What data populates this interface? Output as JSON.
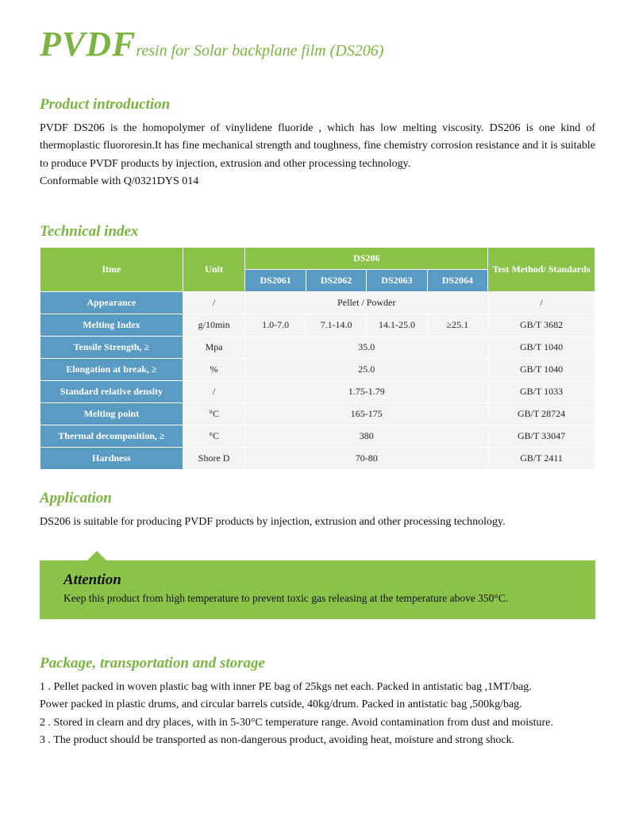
{
  "title": {
    "big": "PVDF",
    "sub": "resin for Solar backplane film (DS206)"
  },
  "intro": {
    "heading": "Product introduction",
    "text": "PVDF  DS206 is the homopolymer of vinylidene fluoride , which has low melting viscosity. DS206 is one kind of thermoplastic fluororesin.It has fine mechanical strength and toughness, fine chemistry corrosion resistance and it is suitable to produce PVDF products by injection, extrusion and other processing technology.\nConformable with Q/0321DYS 014"
  },
  "tech": {
    "heading": "Technical index",
    "header": {
      "item": "Itme",
      "unit": "Unit",
      "group": "DS206",
      "sub": [
        "DS2061",
        "DS2062",
        "DS2063",
        "DS2064"
      ],
      "standards": "Test Method/ Standards"
    },
    "rows": [
      {
        "item": "Appearance",
        "unit": "/",
        "merged": "Pellet / Powder",
        "std": "/"
      },
      {
        "item": "Melting Index",
        "unit": "g/10min",
        "vals": [
          "1.0-7.0",
          "7.1-14.0",
          "14.1-25.0",
          "≥25.1"
        ],
        "std": "GB/T 3682"
      },
      {
        "item": "Tensile Strength, ≥",
        "unit": "Mpa",
        "merged": "35.0",
        "std": "GB/T 1040"
      },
      {
        "item": "Elongation at break, ≥",
        "unit": "%",
        "merged": "25.0",
        "std": "GB/T 1040"
      },
      {
        "item": "Standard relative density",
        "unit": "/",
        "merged": "1.75-1.79",
        "std": "GB/T 1033"
      },
      {
        "item": "Melting point",
        "unit": "°C",
        "merged": "165-175",
        "std": "GB/T 28724"
      },
      {
        "item": "Thermal decomposition, ≥",
        "unit": "°C",
        "merged": "380",
        "std": "GB/T 33047"
      },
      {
        "item": "Hardness",
        "unit": "Shore D",
        "merged": "70-80",
        "std": "GB/T 2411"
      }
    ]
  },
  "application": {
    "heading": "Application",
    "text": "DS206 is suitable for producing PVDF products by injection, extrusion and other processing technology."
  },
  "attention": {
    "heading": "Attention",
    "text": "Keep this product from high temperature to prevent toxic gas releasing at the temperature above 350°C."
  },
  "package": {
    "heading": "Package, transportation and storage",
    "lines": [
      "1 . Pellet packed in woven plastic bag with inner PE bag of 25kgs net each. Packed in antistatic bag ,1MT/bag.",
      "Power packed in plastic drums, and circular barrels cutside, 40kg/drum. Packed in antistatic bag ,500kg/bag.",
      "2 . Stored in clearn and dry places, with in 5-30°C temperature range. Avoid contamination from dust and moisture.",
      "3 . The product should be transported as non-dangerous product, avoiding heat, moisture and strong shock."
    ]
  },
  "colors": {
    "accent_green": "#7cb342",
    "header_green": "#8bc34a",
    "row_blue": "#5a9bc4",
    "cell_bg": "#f5f5f0"
  }
}
